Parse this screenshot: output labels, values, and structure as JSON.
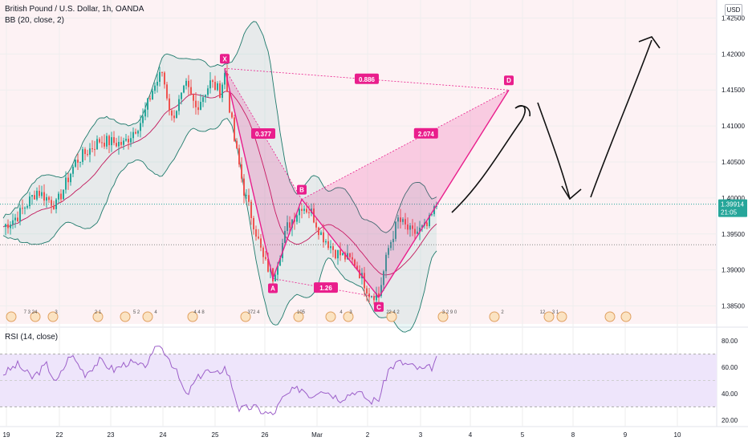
{
  "header": {
    "symbol_title": "British Pound / U.S. Dollar, 1h, OANDA",
    "bb_label": "BB (20, close, 2)",
    "rsi_label": "RSI (14, close)",
    "currency": "USD"
  },
  "price_badge": {
    "price": "1.39914",
    "countdown": "21:05"
  },
  "colors": {
    "up": "#26a69a",
    "down": "#ef5350",
    "bb_band": "#1f7a6c",
    "bb_basis": "#c2185b",
    "pattern": "#e91e8c",
    "rsi_line": "#9c5fc9",
    "rsi_zone": "#eee5fb",
    "badge": "#26a69a",
    "main_bg": "#fdf2f4",
    "grid": "#eeeeee"
  },
  "chart_data": [
    {
      "type": "candlestick",
      "title": "British Pound / U.S. Dollar, 1h, OANDA",
      "indicator": "BB (20, close, 2)",
      "ylim": [
        1.3825,
        1.4275
      ],
      "y_ticks": [
        "1.42500",
        "1.42000",
        "1.41500",
        "1.41000",
        "1.40500",
        "1.40000",
        "1.39500",
        "1.39000",
        "1.38500"
      ],
      "x_ticks": [
        "19",
        "22",
        "23",
        "24",
        "25",
        "26",
        "Mar",
        "2",
        "3",
        "4",
        "5",
        "8",
        "9",
        "10"
      ],
      "last_price": 1.39914,
      "price_anchors": [
        [
          0,
          1.396
        ],
        [
          6,
          1.3975
        ],
        [
          14,
          1.401
        ],
        [
          22,
          1.399
        ],
        [
          30,
          1.405
        ],
        [
          40,
          1.408
        ],
        [
          50,
          1.4075
        ],
        [
          58,
          1.411
        ],
        [
          62,
          1.415
        ],
        [
          66,
          1.4175
        ],
        [
          70,
          1.411
        ],
        [
          76,
          1.4155
        ],
        [
          80,
          1.4125
        ],
        [
          86,
          1.416
        ],
        [
          90,
          1.4148
        ],
        [
          92,
          1.4172
        ],
        [
          96,
          1.408
        ],
        [
          100,
          1.401
        ],
        [
          104,
          1.3965
        ],
        [
          108,
          1.3915
        ],
        [
          112,
          1.389
        ],
        [
          118,
          1.396
        ],
        [
          124,
          1.399
        ],
        [
          128,
          1.398
        ],
        [
          132,
          1.395
        ],
        [
          138,
          1.3925
        ],
        [
          146,
          1.391
        ],
        [
          152,
          1.3868
        ],
        [
          156,
          1.3865
        ],
        [
          160,
          1.393
        ],
        [
          164,
          1.397
        ],
        [
          170,
          1.395
        ],
        [
          176,
          1.396
        ],
        [
          180,
          1.399
        ]
      ],
      "harmonic_pattern": {
        "points": [
          {
            "label": "X",
            "bar": 92,
            "price": 1.418
          },
          {
            "label": "A",
            "bar": 112,
            "price": 1.3888
          },
          {
            "label": "B",
            "bar": 124,
            "price": 1.3998
          },
          {
            "label": "C",
            "bar": 156,
            "price": 1.3862
          },
          {
            "label": "D",
            "bar": 210,
            "price": 1.415
          }
        ],
        "ratios": {
          "xb": "0.377",
          "ac": "1.26",
          "bd": "2.074",
          "xd": "0.886"
        }
      },
      "event_markers": [
        "7 3 24",
        "3",
        "2 1",
        "5 2",
        "4",
        "4 4 8",
        "372 4",
        "105",
        "4",
        "3",
        "2",
        "2 4 2",
        "3 2 9 0",
        "2",
        "12",
        "3 1"
      ]
    },
    {
      "type": "line",
      "title": "RSI (14, close)",
      "ylim": [
        15,
        88
      ],
      "y_ticks": [
        "80.00",
        "60.00",
        "40.00",
        "20.00"
      ],
      "band": [
        30,
        70
      ],
      "rsi_anchors": [
        [
          0,
          55
        ],
        [
          6,
          62
        ],
        [
          12,
          52
        ],
        [
          18,
          62
        ],
        [
          22,
          48
        ],
        [
          28,
          70
        ],
        [
          34,
          55
        ],
        [
          40,
          65
        ],
        [
          46,
          58
        ],
        [
          52,
          64
        ],
        [
          58,
          60
        ],
        [
          62,
          68
        ],
        [
          64,
          78
        ],
        [
          68,
          70
        ],
        [
          72,
          56
        ],
        [
          76,
          38
        ],
        [
          80,
          50
        ],
        [
          84,
          58
        ],
        [
          88,
          54
        ],
        [
          92,
          60
        ],
        [
          94,
          52
        ],
        [
          98,
          28
        ],
        [
          104,
          30
        ],
        [
          108,
          26
        ],
        [
          112,
          24
        ],
        [
          116,
          36
        ],
        [
          120,
          42
        ],
        [
          124,
          44
        ],
        [
          128,
          38
        ],
        [
          132,
          44
        ],
        [
          136,
          40
        ],
        [
          140,
          36
        ],
        [
          146,
          42
        ],
        [
          150,
          38
        ],
        [
          152,
          34
        ],
        [
          156,
          36
        ],
        [
          160,
          58
        ],
        [
          164,
          64
        ],
        [
          168,
          62
        ],
        [
          174,
          58
        ],
        [
          178,
          60
        ],
        [
          180,
          66
        ]
      ]
    }
  ]
}
